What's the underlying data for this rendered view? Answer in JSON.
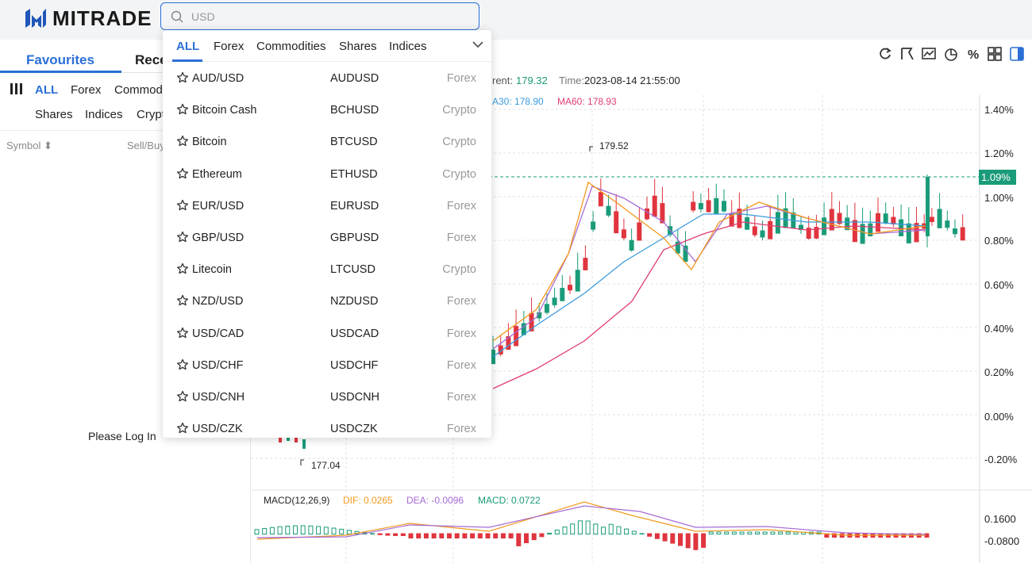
{
  "brand": {
    "name": "MITRADE"
  },
  "search": {
    "placeholder": "USD"
  },
  "left_panel": {
    "tabs": [
      "Favourites",
      "Rece"
    ],
    "filters_row1": [
      "ALL",
      "Forex",
      "Commod"
    ],
    "filters_row2": [
      "Shares",
      "Indices",
      "Crypt"
    ],
    "col_symbol": "Symbol",
    "col_sellbuy": "Sell/Buy",
    "login_text": "Please Log In"
  },
  "chart_info": {
    "current_label": "rent:",
    "current_value": "179.32",
    "time_label": "Time:",
    "time_value": "2023-08-14 21:55:00",
    "ma30": "A30: 178.90",
    "ma60": "MA60: 178.93",
    "high_label": "179.52",
    "low_label": "177.04",
    "current_pct": "1.09%",
    "macd_title": "MACD(12,26,9)",
    "dif": "DIF: 0.0265",
    "dea": "DEA: -0.0096",
    "macd": "MACD: 0.0722",
    "macd_axis_top": "0.1600",
    "macd_axis_bottom": "-0.0800",
    "y_axis_ticks": [
      "1.40%",
      "1.20%",
      "1.00%",
      "0.80%",
      "0.60%",
      "0.40%",
      "0.20%",
      "0.00%",
      "-0.20%"
    ],
    "colors": {
      "up": "#1a9b79",
      "down": "#e0353f",
      "ma_fast": "#f29a1d",
      "ma_mid": "#a66bd4",
      "ma30": "#3a9be0",
      "ma60": "#e03c70"
    }
  },
  "toolbar_icons": [
    "refresh-icon",
    "draw-icon",
    "indicator-icon",
    "pie-icon",
    "percent-icon",
    "grid-icon",
    "panel-icon"
  ],
  "dropdown": {
    "tabs": [
      "ALL",
      "Forex",
      "Commodities",
      "Shares",
      "Indices"
    ],
    "items": [
      {
        "name": "AUD/USD",
        "symbol": "AUDUSD",
        "category": "Forex"
      },
      {
        "name": "Bitcoin Cash",
        "symbol": "BCHUSD",
        "category": "Crypto"
      },
      {
        "name": "Bitcoin",
        "symbol": "BTCUSD",
        "category": "Crypto"
      },
      {
        "name": "Ethereum",
        "symbol": "ETHUSD",
        "category": "Crypto"
      },
      {
        "name": "EUR/USD",
        "symbol": "EURUSD",
        "category": "Forex"
      },
      {
        "name": "GBP/USD",
        "symbol": "GBPUSD",
        "category": "Forex"
      },
      {
        "name": "Litecoin",
        "symbol": "LTCUSD",
        "category": "Crypto"
      },
      {
        "name": "NZD/USD",
        "symbol": "NZDUSD",
        "category": "Forex"
      },
      {
        "name": "USD/CAD",
        "symbol": "USDCAD",
        "category": "Forex"
      },
      {
        "name": "USD/CHF",
        "symbol": "USDCHF",
        "category": "Forex"
      },
      {
        "name": "USD/CNH",
        "symbol": "USDCNH",
        "category": "Forex"
      },
      {
        "name": "USD/CZK",
        "symbol": "USDCZK",
        "category": "Forex"
      }
    ]
  }
}
